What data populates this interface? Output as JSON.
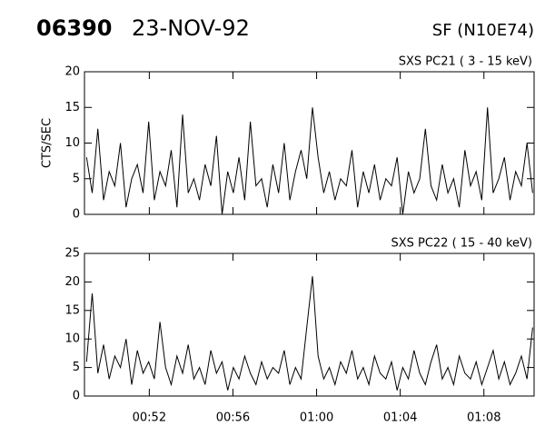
{
  "header": {
    "id": "06390",
    "date": "23-NOV-92",
    "region": "SF (N10E74)"
  },
  "chart_data": [
    {
      "type": "line",
      "title": "SXS PC21  (  3 - 15 keV)",
      "ylabel": "CTS/SEC",
      "color": "#000000",
      "xlim": [
        48.9,
        70.4
      ],
      "ylim": [
        0,
        20
      ],
      "yticks": [
        0,
        5,
        10,
        15,
        20
      ],
      "x": [
        49.0,
        49.27,
        49.54,
        49.81,
        50.08,
        50.35,
        50.62,
        50.89,
        51.16,
        51.43,
        51.7,
        51.97,
        52.24,
        52.51,
        52.78,
        53.05,
        53.32,
        53.59,
        53.86,
        54.13,
        54.4,
        54.67,
        54.94,
        55.21,
        55.48,
        55.75,
        56.02,
        56.29,
        56.56,
        56.83,
        57.1,
        57.37,
        57.64,
        57.91,
        58.18,
        58.45,
        58.72,
        58.99,
        59.26,
        59.53,
        59.8,
        60.07,
        60.34,
        60.61,
        60.88,
        61.15,
        61.42,
        61.69,
        61.96,
        62.23,
        62.5,
        62.77,
        63.04,
        63.31,
        63.58,
        63.85,
        64.12,
        64.39,
        64.66,
        64.93,
        65.2,
        65.47,
        65.74,
        66.01,
        66.28,
        66.55,
        66.82,
        67.09,
        67.36,
        67.63,
        67.9,
        68.17,
        68.44,
        68.71,
        68.98,
        69.25,
        69.52,
        69.79,
        70.06,
        70.33
      ],
      "values": [
        8,
        3,
        12,
        2,
        6,
        4,
        10,
        1,
        5,
        7,
        3,
        13,
        2,
        6,
        4,
        9,
        1,
        14,
        3,
        5,
        2,
        7,
        4,
        11,
        0,
        6,
        3,
        8,
        2,
        13,
        4,
        5,
        1,
        7,
        3,
        10,
        2,
        6,
        9,
        5,
        15,
        8,
        3,
        6,
        2,
        5,
        4,
        9,
        1,
        6,
        3,
        7,
        2,
        5,
        4,
        8,
        0,
        6,
        3,
        5,
        12,
        4,
        2,
        7,
        3,
        5,
        1,
        9,
        4,
        6,
        2,
        15,
        3,
        5,
        8,
        2,
        6,
        4,
        10,
        3
      ]
    },
    {
      "type": "line",
      "title": "SXS PC22  ( 15 - 40 keV)",
      "color": "#000000",
      "xlim": [
        48.9,
        70.4
      ],
      "ylim": [
        0,
        25
      ],
      "yticks": [
        0,
        5,
        10,
        15,
        20,
        25
      ],
      "xticks": [
        {
          "value": 52,
          "label": "00:52"
        },
        {
          "value": 56,
          "label": "00:56"
        },
        {
          "value": 60,
          "label": "01:00"
        },
        {
          "value": 64,
          "label": "01:04"
        },
        {
          "value": 68,
          "label": "01:08"
        }
      ],
      "x": [
        49.0,
        49.27,
        49.54,
        49.81,
        50.08,
        50.35,
        50.62,
        50.89,
        51.16,
        51.43,
        51.7,
        51.97,
        52.24,
        52.51,
        52.78,
        53.05,
        53.32,
        53.59,
        53.86,
        54.13,
        54.4,
        54.67,
        54.94,
        55.21,
        55.48,
        55.75,
        56.02,
        56.29,
        56.56,
        56.83,
        57.1,
        57.37,
        57.64,
        57.91,
        58.18,
        58.45,
        58.72,
        58.99,
        59.26,
        59.53,
        59.8,
        60.07,
        60.34,
        60.61,
        60.88,
        61.15,
        61.42,
        61.69,
        61.96,
        62.23,
        62.5,
        62.77,
        63.04,
        63.31,
        63.58,
        63.85,
        64.12,
        64.39,
        64.66,
        64.93,
        65.2,
        65.47,
        65.74,
        66.01,
        66.28,
        66.55,
        66.82,
        67.09,
        67.36,
        67.63,
        67.9,
        68.17,
        68.44,
        68.71,
        68.98,
        69.25,
        69.52,
        69.79,
        70.06,
        70.33
      ],
      "values": [
        6,
        18,
        4,
        9,
        3,
        7,
        5,
        10,
        2,
        8,
        4,
        6,
        3,
        13,
        5,
        2,
        7,
        4,
        9,
        3,
        5,
        2,
        8,
        4,
        6,
        1,
        5,
        3,
        7,
        4,
        2,
        6,
        3,
        5,
        4,
        8,
        2,
        5,
        3,
        12,
        21,
        7,
        3,
        5,
        2,
        6,
        4,
        8,
        3,
        5,
        2,
        7,
        4,
        3,
        6,
        1,
        5,
        3,
        8,
        4,
        2,
        6,
        9,
        3,
        5,
        2,
        7,
        4,
        3,
        6,
        2,
        5,
        8,
        3,
        6,
        2,
        4,
        7,
        3,
        12
      ]
    }
  ]
}
